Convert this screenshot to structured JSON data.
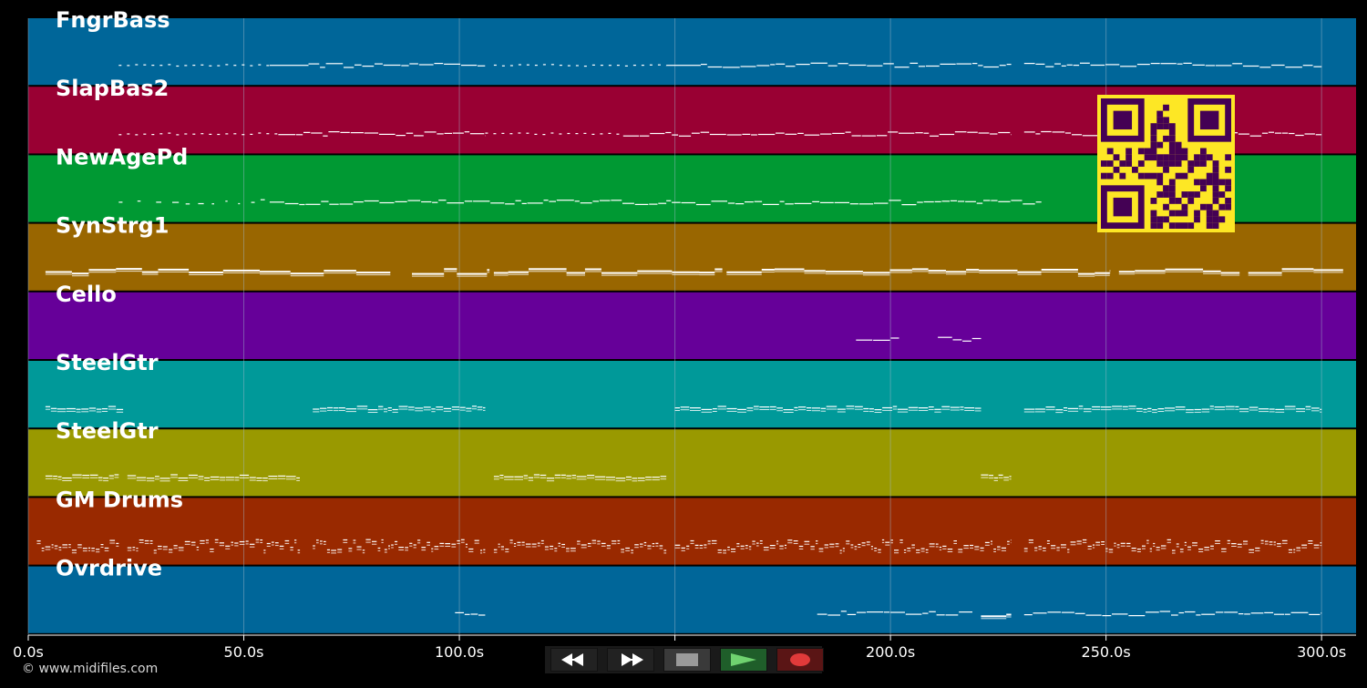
{
  "app": {
    "copyright": "© www.midifiles.com"
  },
  "colors": {
    "background": "#000000",
    "grid": "#9fb7c9",
    "note": "#ffffff",
    "qr_bg": "#fde725",
    "qr_fg": "#440154"
  },
  "timeline": {
    "seconds_max": 308,
    "ticks": [
      {
        "value": 0,
        "label": "0.0s"
      },
      {
        "value": 50,
        "label": "50.0s"
      },
      {
        "value": 100,
        "label": "100.0s"
      },
      {
        "value": 150,
        "label": "150.0s"
      },
      {
        "value": 200,
        "label": "200.0s"
      },
      {
        "value": 250,
        "label": "250.0s"
      },
      {
        "value": 300,
        "label": "300.0s"
      }
    ]
  },
  "tracks": [
    {
      "name": "FngrBass",
      "color": "#006699",
      "segments": [
        [
          21,
          56,
          "dots"
        ],
        [
          56,
          65,
          "line"
        ],
        [
          65,
          106,
          "wave"
        ],
        [
          108,
          148,
          "dots"
        ],
        [
          148,
          156,
          "line"
        ],
        [
          156,
          228,
          "wave"
        ],
        [
          231,
          300,
          "wave"
        ]
      ]
    },
    {
      "name": "SlapBas2",
      "color": "#990033",
      "segments": [
        [
          21,
          58,
          "dots"
        ],
        [
          58,
          106,
          "wave"
        ],
        [
          106,
          138,
          "dots"
        ],
        [
          138,
          228,
          "wave"
        ],
        [
          231,
          300,
          "wave"
        ]
      ]
    },
    {
      "name": "NewAgePd",
      "color": "#009933",
      "segments": [
        [
          21,
          56,
          "sparse"
        ],
        [
          56,
          148,
          "wave"
        ],
        [
          148,
          235,
          "wave"
        ]
      ]
    },
    {
      "name": "SynStrg1",
      "color": "#996600",
      "segments": [
        [
          4,
          84,
          "thick"
        ],
        [
          89,
          107,
          "thick"
        ],
        [
          108,
          161,
          "thick"
        ],
        [
          162,
          251,
          "thick"
        ],
        [
          253,
          281,
          "thick"
        ],
        [
          283,
          305,
          "thick"
        ]
      ]
    },
    {
      "name": "Cello",
      "color": "#660099",
      "segments": [
        [
          192,
          202,
          "wave"
        ],
        [
          211,
          221,
          "wave"
        ]
      ]
    },
    {
      "name": "SteelGtr",
      "color": "#009999",
      "segments": [
        [
          4,
          22,
          "dense"
        ],
        [
          66,
          106,
          "dense"
        ],
        [
          150,
          221,
          "dense"
        ],
        [
          231,
          300,
          "dense"
        ]
      ]
    },
    {
      "name": "SteelGtr",
      "color": "#999900",
      "segments": [
        [
          4,
          21,
          "dense"
        ],
        [
          23,
          63,
          "dense"
        ],
        [
          108,
          148,
          "dense"
        ],
        [
          221,
          228,
          "dense"
        ]
      ]
    },
    {
      "name": "GM Drums",
      "color": "#992900",
      "segments": [
        [
          2,
          21,
          "drums"
        ],
        [
          23,
          63,
          "drums"
        ],
        [
          66,
          106,
          "drums"
        ],
        [
          108,
          148,
          "drums"
        ],
        [
          150,
          228,
          "drums"
        ],
        [
          231,
          300,
          "drums"
        ]
      ]
    },
    {
      "name": "Ovrdrive",
      "color": "#006699",
      "segments": [
        [
          99,
          106,
          "wave"
        ],
        [
          183,
          219,
          "wave"
        ],
        [
          221,
          228,
          "thick"
        ],
        [
          231,
          300,
          "wave"
        ]
      ]
    }
  ],
  "transport": {
    "buttons": [
      {
        "name": "rewind-button",
        "icon": "rewind-icon",
        "color": "#222222"
      },
      {
        "name": "fast-forward-button",
        "icon": "fast-forward-icon",
        "color": "#222222"
      },
      {
        "name": "stop-button",
        "icon": "stop-icon",
        "color": "#3a3a3a"
      },
      {
        "name": "play-button",
        "icon": "play-icon",
        "color": "#1f5e2a"
      },
      {
        "name": "record-button",
        "icon": "record-icon",
        "color": "#5a1515"
      }
    ]
  }
}
